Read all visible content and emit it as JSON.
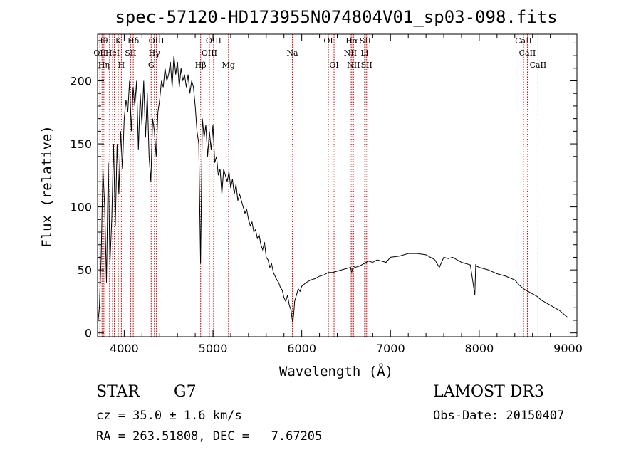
{
  "chart_data": {
    "type": "line",
    "title": "spec-57120-HD173955N074804V01_sp03-098.fits",
    "xlabel": "Wavelength (Å)",
    "ylabel": "Flux (relative)",
    "xlim": [
      3700,
      9100
    ],
    "ylim": [
      -3,
      237
    ],
    "x_ticks": [
      4000,
      5000,
      6000,
      7000,
      8000,
      9000
    ],
    "y_ticks": [
      0,
      50,
      100,
      150,
      200
    ],
    "grid": false,
    "series": [
      {
        "color": "#000000",
        "x": [
          3700,
          3720,
          3740,
          3760,
          3780,
          3800,
          3820,
          3840,
          3860,
          3880,
          3900,
          3920,
          3940,
          3960,
          3980,
          4000,
          4020,
          4040,
          4060,
          4080,
          4100,
          4120,
          4140,
          4160,
          4180,
          4200,
          4220,
          4240,
          4260,
          4280,
          4300,
          4320,
          4340,
          4360,
          4380,
          4400,
          4420,
          4440,
          4460,
          4480,
          4500,
          4520,
          4540,
          4560,
          4580,
          4600,
          4620,
          4640,
          4660,
          4680,
          4700,
          4720,
          4740,
          4760,
          4780,
          4800,
          4820,
          4840,
          4860,
          4880,
          4900,
          4920,
          4940,
          4960,
          4980,
          5000,
          5020,
          5040,
          5060,
          5080,
          5100,
          5120,
          5140,
          5160,
          5180,
          5200,
          5220,
          5240,
          5260,
          5280,
          5300,
          5320,
          5340,
          5360,
          5380,
          5400,
          5420,
          5440,
          5460,
          5480,
          5500,
          5520,
          5540,
          5560,
          5580,
          5600,
          5620,
          5640,
          5660,
          5680,
          5700,
          5720,
          5740,
          5760,
          5780,
          5800,
          5820,
          5840,
          5860,
          5880,
          5890,
          5900,
          5910,
          5920,
          5940,
          5960,
          5980,
          6000,
          6050,
          6100,
          6150,
          6200,
          6250,
          6300,
          6350,
          6400,
          6450,
          6500,
          6550,
          6563,
          6580,
          6600,
          6650,
          6700,
          6750,
          6800,
          6850,
          6900,
          6950,
          7000,
          7100,
          7200,
          7300,
          7400,
          7500,
          7550,
          7600,
          7650,
          7700,
          7800,
          7900,
          7950,
          7960,
          7970,
          8000,
          8100,
          8200,
          8300,
          8400,
          8450,
          8500,
          8550,
          8600,
          8650,
          8700,
          8750,
          8800,
          8850,
          8900,
          8950,
          9000
        ],
        "y": [
          5,
          20,
          60,
          130,
          100,
          40,
          135,
          55,
          90,
          150,
          85,
          150,
          110,
          160,
          130,
          170,
          185,
          175,
          200,
          160,
          195,
          180,
          200,
          145,
          190,
          165,
          200,
          155,
          190,
          140,
          120,
          170,
          160,
          140,
          175,
          185,
          200,
          195,
          210,
          200,
          205,
          215,
          195,
          220,
          205,
          215,
          195,
          210,
          200,
          205,
          195,
          205,
          190,
          200,
          195,
          180,
          160,
          150,
          55,
          170,
          155,
          165,
          140,
          160,
          145,
          165,
          135,
          140,
          125,
          130,
          110,
          130,
          125,
          120,
          128,
          115,
          122,
          110,
          118,
          105,
          110,
          105,
          100,
          95,
          98,
          90,
          85,
          88,
          80,
          82,
          75,
          78,
          70,
          66,
          72,
          60,
          58,
          52,
          55,
          48,
          45,
          42,
          40,
          36,
          34,
          28,
          25,
          30,
          22,
          18,
          12,
          8,
          15,
          25,
          30,
          35,
          33,
          37,
          40,
          42,
          43,
          45,
          46,
          48,
          48,
          49,
          50,
          51,
          52,
          48,
          53,
          52,
          53,
          55,
          57,
          56,
          58,
          57,
          56,
          60,
          61,
          63,
          63,
          62,
          58,
          52,
          60,
          59,
          60,
          56,
          54,
          30,
          54,
          53,
          52,
          50,
          47,
          45,
          42,
          38,
          35,
          33,
          31,
          29,
          26,
          24,
          22,
          20,
          18,
          15,
          12
        ]
      }
    ],
    "line_markers": {
      "color": "#cc0000",
      "lines": [
        {
          "x": 3726,
          "label": "OII",
          "row": 1
        },
        {
          "x": 3750,
          "label": "Hθ",
          "row": 0
        },
        {
          "x": 3771,
          "label": "Hη",
          "row": 2
        },
        {
          "x": 3835,
          "label": "",
          "row": 2
        },
        {
          "x": 3869,
          "label": "HeI",
          "row": 1
        },
        {
          "x": 3889,
          "label": "",
          "row": 2
        },
        {
          "x": 3933,
          "label": "K",
          "row": 0
        },
        {
          "x": 3968,
          "label": "H",
          "row": 2
        },
        {
          "x": 4072,
          "label": "SII",
          "row": 1
        },
        {
          "x": 4102,
          "label": "Hδ",
          "row": 0
        },
        {
          "x": 4304,
          "label": "G",
          "row": 2
        },
        {
          "x": 4340,
          "label": "Hγ",
          "row": 1
        },
        {
          "x": 4363,
          "label": "OIII",
          "row": 0
        },
        {
          "x": 4861,
          "label": "Hβ",
          "row": 2
        },
        {
          "x": 4959,
          "label": "OIII",
          "row": 1
        },
        {
          "x": 5007,
          "label": "OIII",
          "row": 0
        },
        {
          "x": 5175,
          "label": "Mg",
          "row": 2
        },
        {
          "x": 5894,
          "label": "Na",
          "row": 1
        },
        {
          "x": 6300,
          "label": "OI",
          "row": 0
        },
        {
          "x": 6364,
          "label": "OI",
          "row": 2
        },
        {
          "x": 6548,
          "label": "NII",
          "row": 1
        },
        {
          "x": 6563,
          "label": "Hα",
          "row": 0
        },
        {
          "x": 6583,
          "label": "NII",
          "row": 2
        },
        {
          "x": 6708,
          "label": "Li",
          "row": 1
        },
        {
          "x": 6716,
          "label": "SII",
          "row": 0
        },
        {
          "x": 6731,
          "label": "SII",
          "row": 2
        },
        {
          "x": 8498,
          "label": "CaII",
          "row": 0
        },
        {
          "x": 8542,
          "label": "CaII",
          "row": 1
        },
        {
          "x": 8662,
          "label": "CaII",
          "row": 2
        }
      ]
    }
  },
  "info": {
    "object_class": "STAR",
    "subclass": "G7",
    "survey": "LAMOST DR3",
    "cz": "cz = 35.0 ± 1.6 km/s",
    "obs_date": "Obs-Date: 20150407",
    "coords": "RA = 263.51808, DEC =   7.67205"
  }
}
